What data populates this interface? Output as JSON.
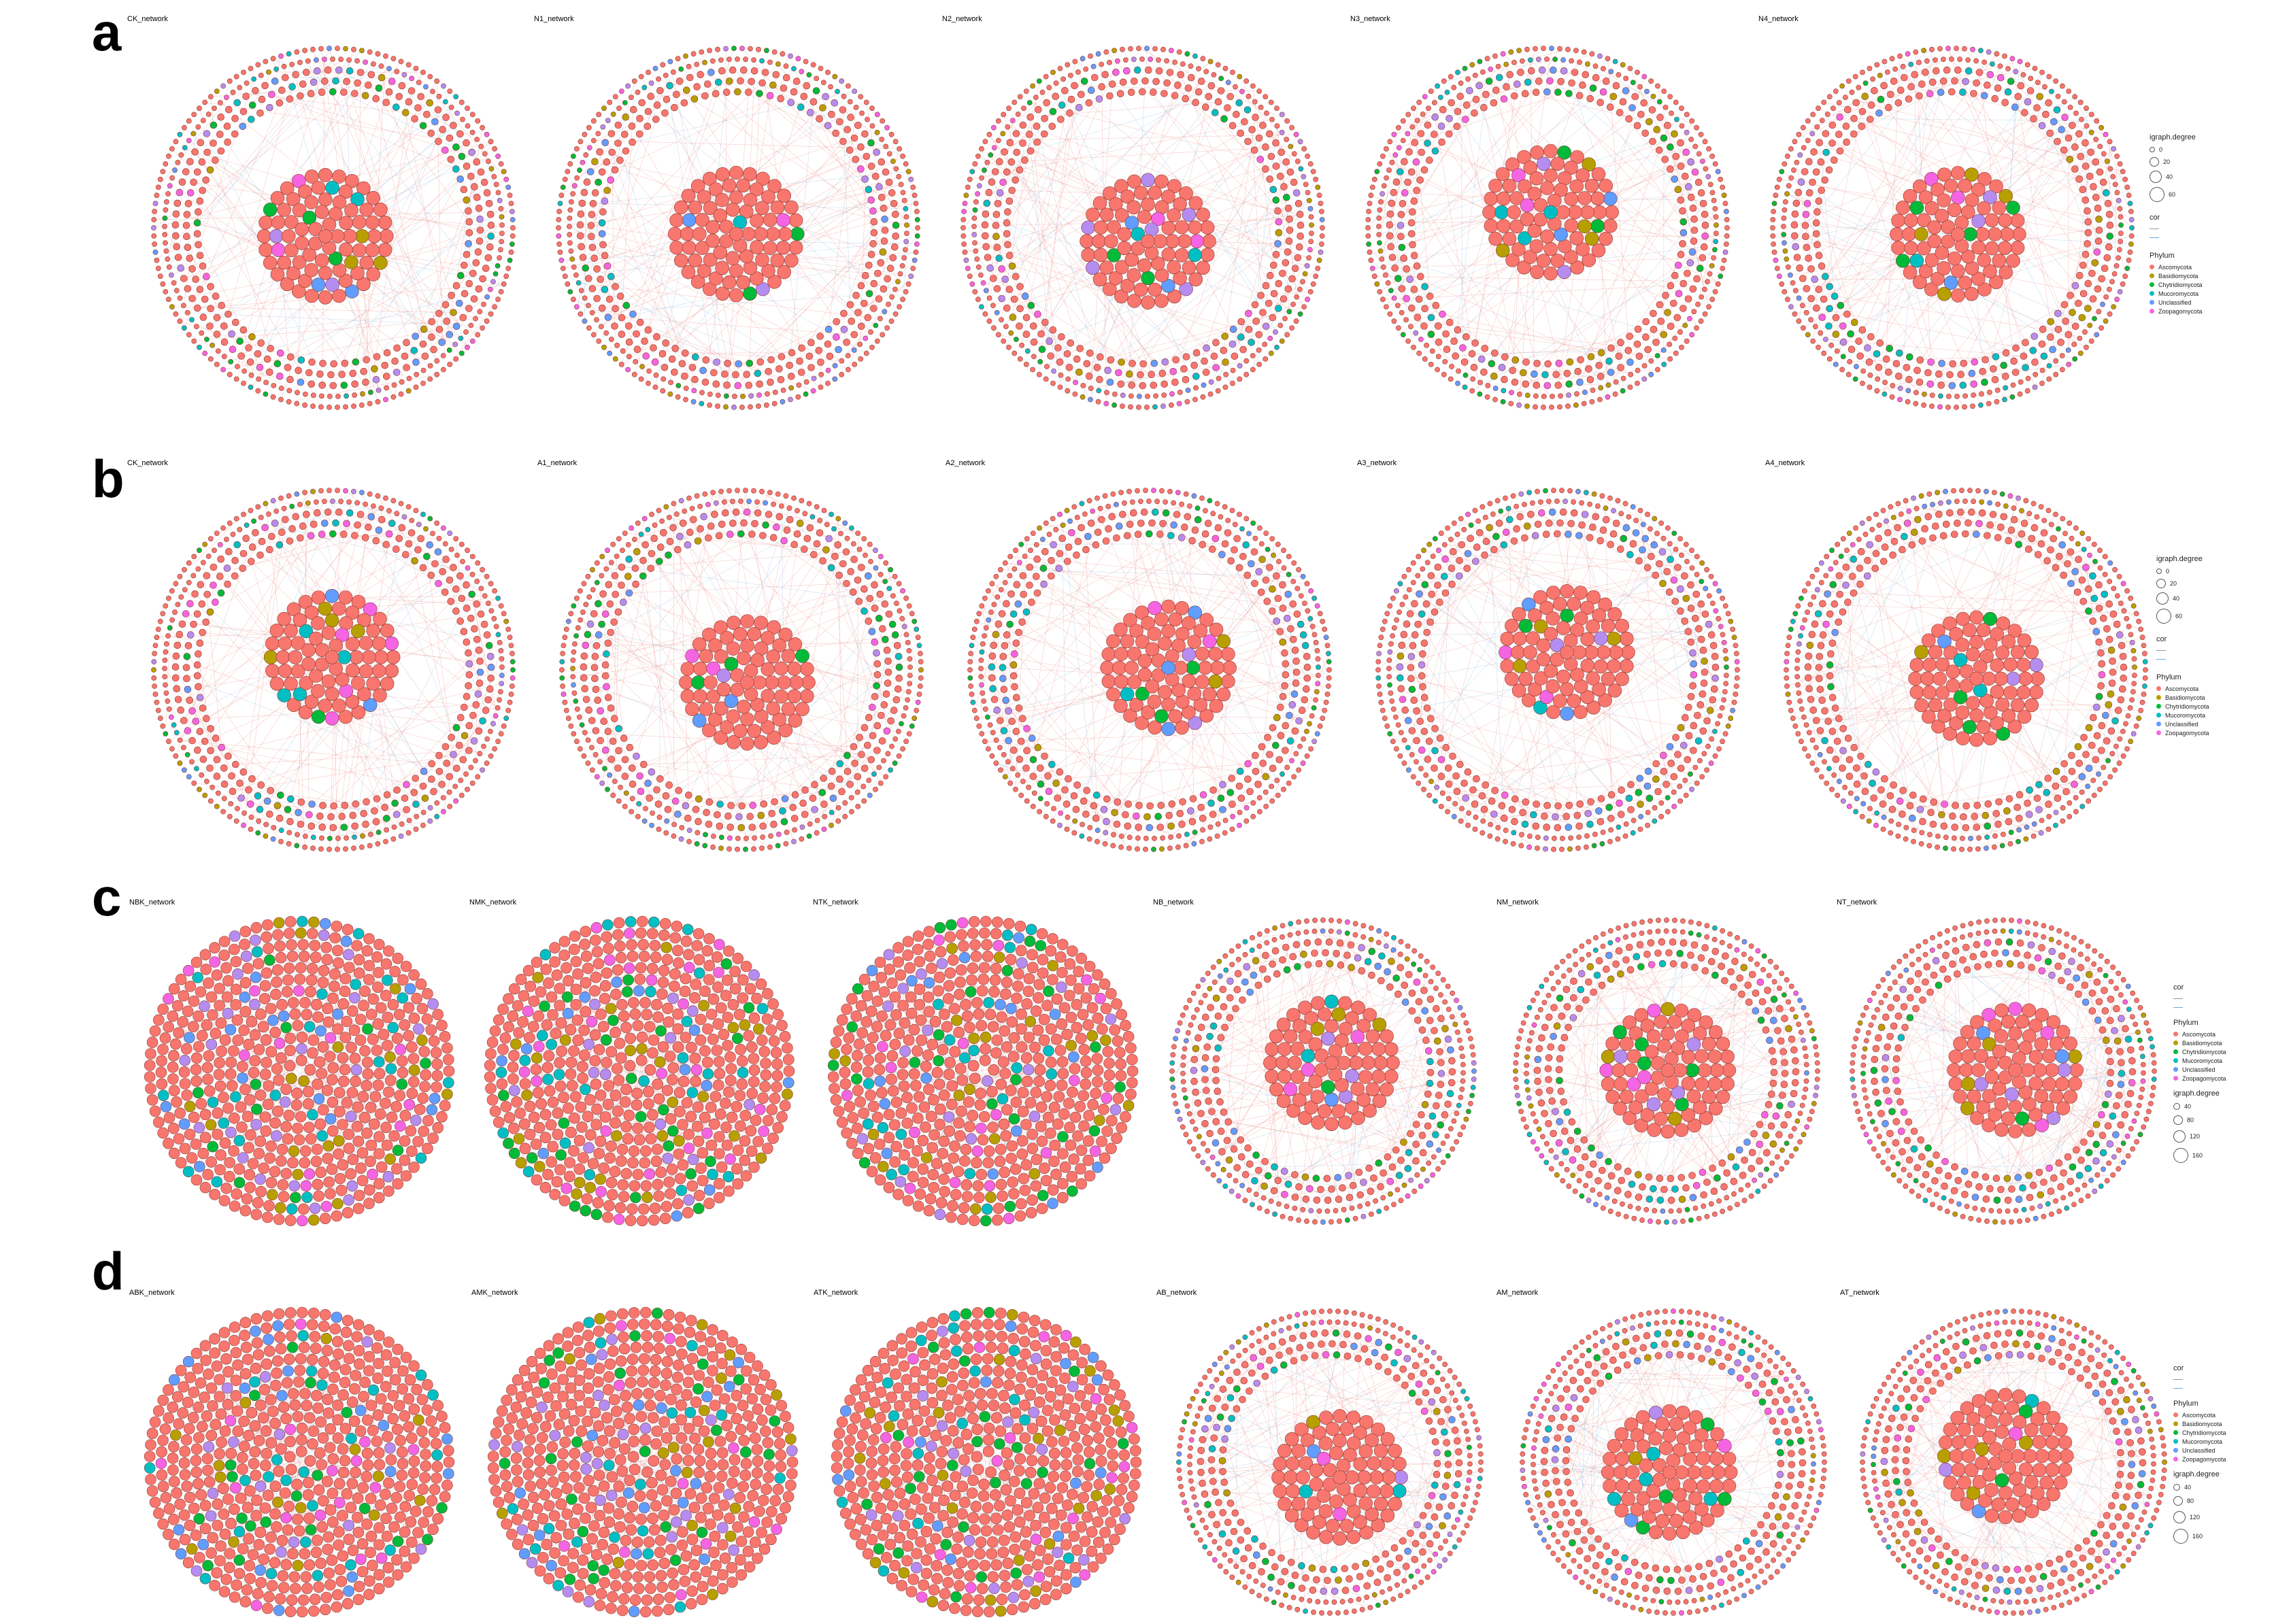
{
  "row_labels": [
    "a",
    "b",
    "c",
    "d"
  ],
  "rows": [
    {
      "networks": [
        "CK_network",
        "N1_network",
        "N2_network",
        "N3_network",
        "N4_network"
      ],
      "legend": {
        "degree_title": "igraph.degree",
        "degree_values": [
          "0",
          "20",
          "40",
          "60"
        ],
        "cor_title": "cor",
        "phylum_title": "Phylum",
        "phyla": [
          "Ascomycota",
          "Basidiomycota",
          "Chytridiomycota",
          "Mucoromycota",
          "Unclassified",
          "Zoopagomycota"
        ]
      }
    },
    {
      "networks": [
        "CK_network",
        "A1_network",
        "A2_network",
        "A3_network",
        "A4_network"
      ],
      "legend": {
        "degree_title": "igraph.degree",
        "degree_values": [
          "0",
          "20",
          "40",
          "60"
        ],
        "cor_title": "cor",
        "phylum_title": "Phylum",
        "phyla": [
          "Ascomycota",
          "Basidiomycota",
          "Chytridiomycota",
          "Mucoromycota",
          "Unclassified",
          "Zoopagomycota"
        ]
      }
    },
    {
      "networks": [
        "NBK_network",
        "NMK_network",
        "NTK_network",
        "NB_network",
        "NM_network",
        "NT_network"
      ],
      "legend": {
        "cor_title": "cor",
        "phylum_title": "Phylum",
        "phyla": [
          "Ascomycota",
          "Basidiomycota",
          "Chytridiomycota",
          "Mucoromycota",
          "Unclassified",
          "Zoopagomycota"
        ],
        "degree_title": "igraph.degree",
        "degree_values": [
          "40",
          "80",
          "120",
          "160"
        ]
      }
    },
    {
      "networks": [
        "ABK_network",
        "AMK_network",
        "ATK_network",
        "AB_network",
        "AM_network",
        "AT_network"
      ],
      "legend": {
        "cor_title": "cor",
        "phylum_title": "Phylum",
        "phyla": [
          "Ascomycota",
          "Basidiomycota",
          "Chytridiomycota",
          "Mucoromycota",
          "Unclassified",
          "Zoopagomycota"
        ],
        "degree_title": "igraph.degree",
        "degree_values": [
          "40",
          "80",
          "120",
          "160"
        ]
      }
    }
  ],
  "colors": {
    "Ascomycota": "#f8766d",
    "Basidiomycota": "#b79f00",
    "Chytridiomycota": "#00ba38",
    "Mucoromycota": "#00bfc4",
    "Unclassified": "#619cff",
    "Zoopagomycota": "#f564e3",
    "extra_purple": "#b58cf0",
    "node_stroke": "#8a3b35",
    "edge_pos": "#e8706a",
    "edge_neg": "#6fa8d8"
  }
}
